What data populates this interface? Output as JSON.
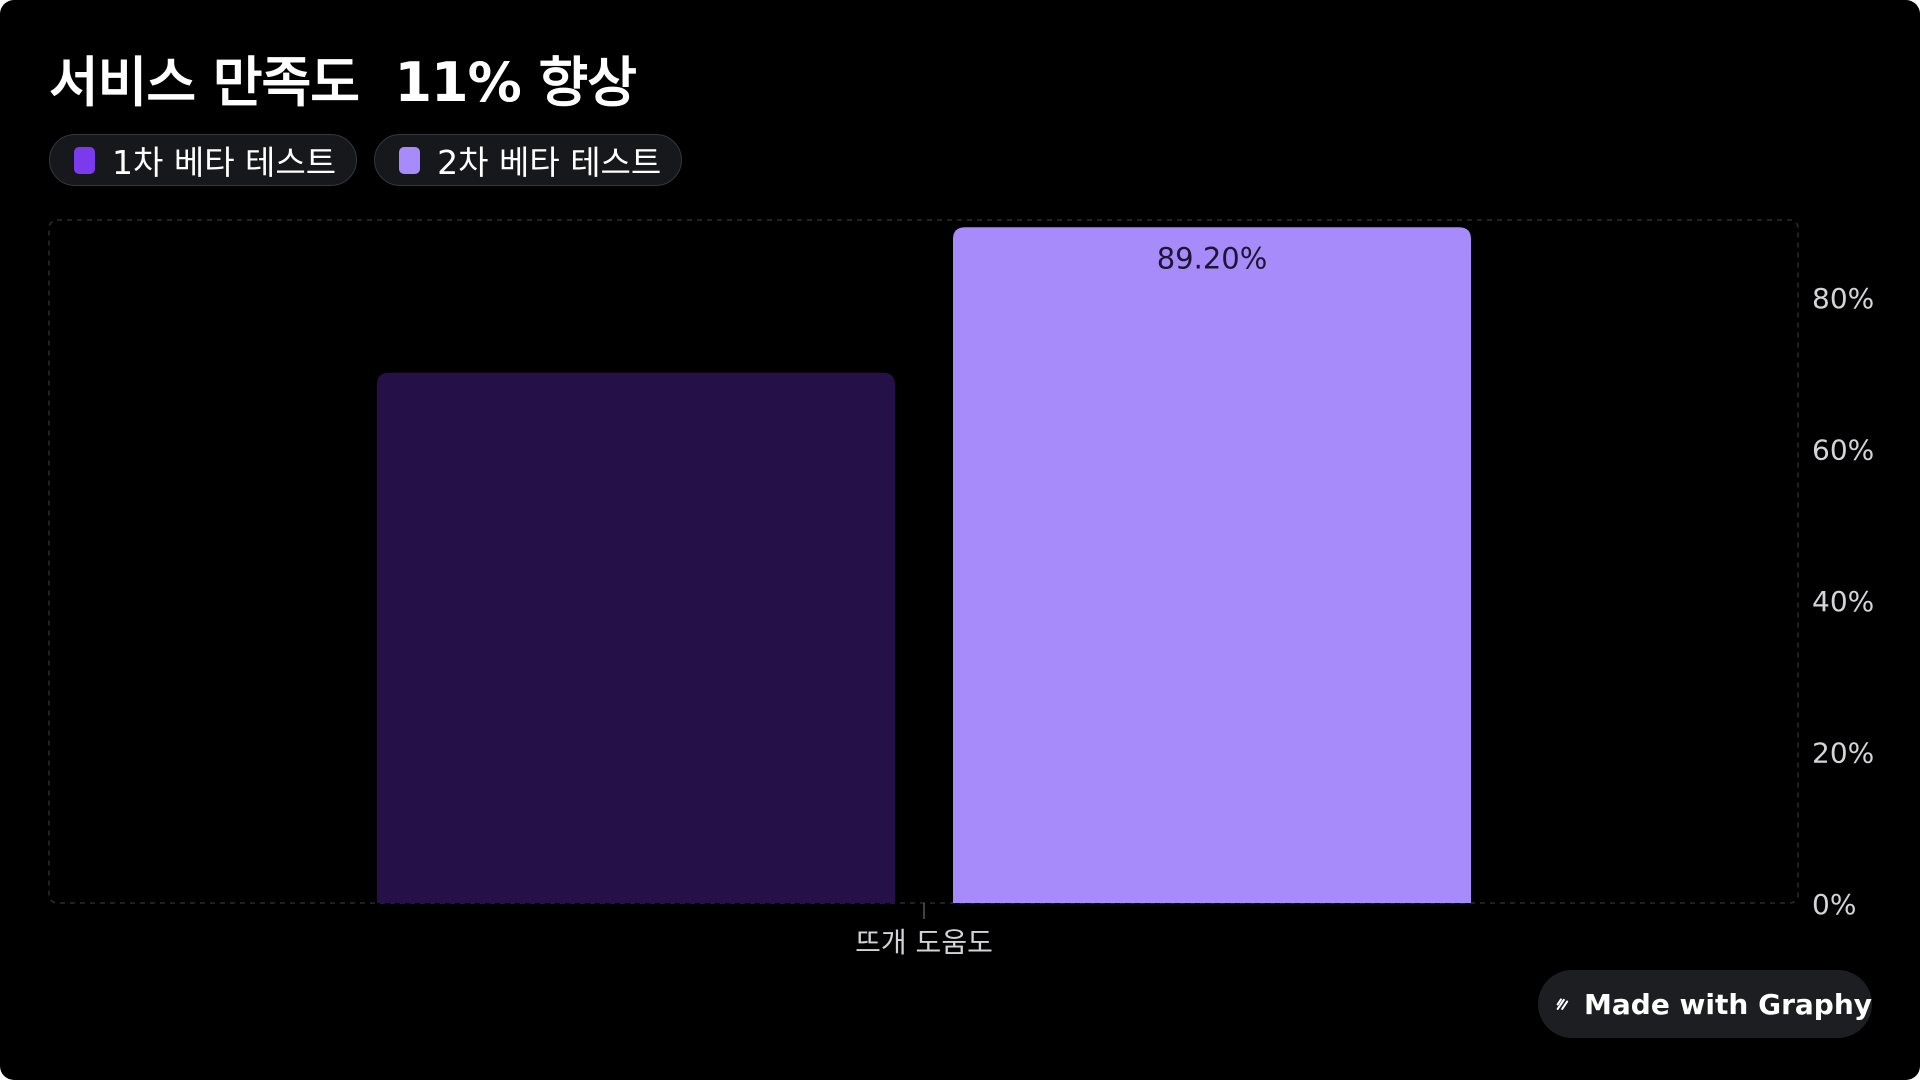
{
  "chart_data": {
    "type": "bar",
    "title": "서비스 만족도  11% 향상",
    "categories": [
      "뜨개 도움도"
    ],
    "series": [
      {
        "name": "1차 베타 테스트",
        "values": [
          70.0
        ],
        "color": "#251047"
      },
      {
        "name": "2차 베타 테스트",
        "values": [
          89.2
        ],
        "color": "#a78bfa",
        "data_label": "89.20%"
      }
    ],
    "legend_swatch_colors": [
      "#7c3aed",
      "#a78bfa"
    ],
    "ylim": [
      0,
      90
    ],
    "y_ticks": [
      0,
      20,
      40,
      60,
      80
    ],
    "y_tick_labels": [
      "0%",
      "20%",
      "40%",
      "60%",
      "80%"
    ],
    "y_axis_side": "right",
    "grid": false,
    "legend_position": "top-left",
    "xlabel": "",
    "ylabel": ""
  },
  "badge": {
    "text": "Made with Graphy",
    "icon": "graphy-logo-icon"
  },
  "colors": {
    "background": "#000000",
    "text": "#ffffff",
    "axis_text": "#d4d4d8",
    "data_label_text": "#1f1535"
  }
}
